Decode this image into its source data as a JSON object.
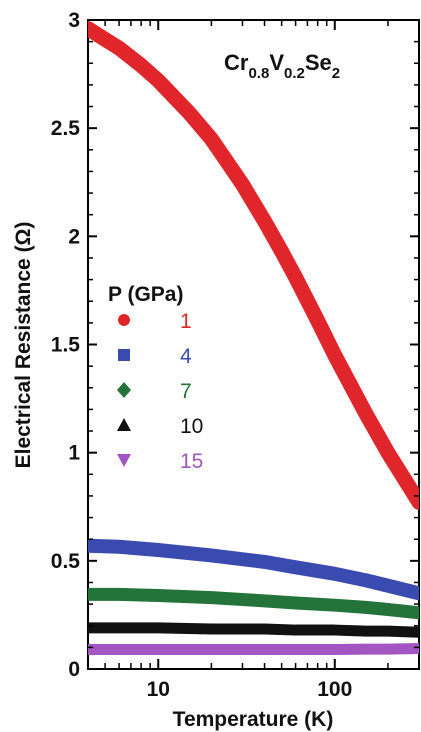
{
  "chart_data": {
    "type": "line",
    "annotation": {
      "parts": [
        {
          "text": "Cr",
          "sub": false
        },
        {
          "text": "0.8",
          "sub": true
        },
        {
          "text": "V",
          "sub": false
        },
        {
          "text": "0.2",
          "sub": true
        },
        {
          "text": "Se",
          "sub": false
        },
        {
          "text": "2",
          "sub": true
        }
      ]
    },
    "xlabel": "Temperature (K)",
    "ylabel": "Electrical Resistance (Ω)",
    "xscale": "log",
    "xlim": [
      4,
      300
    ],
    "ylim": [
      0,
      3
    ],
    "xticks": [
      {
        "value": 10,
        "label": "10"
      },
      {
        "value": 100,
        "label": "100"
      }
    ],
    "yticks": [
      {
        "value": 0,
        "label": "0"
      },
      {
        "value": 0.5,
        "label": "0.5"
      },
      {
        "value": 1,
        "label": "1"
      },
      {
        "value": 1.5,
        "label": "1.5"
      },
      {
        "value": 2,
        "label": "2"
      },
      {
        "value": 2.5,
        "label": "2.5"
      },
      {
        "value": 3,
        "label": "3"
      }
    ],
    "legend_title": "P (GPa)",
    "legend_position": "left-middle",
    "series": [
      {
        "name": "1",
        "color": "#e0262b",
        "marker": "circle",
        "x": [
          4,
          5,
          6,
          8,
          10,
          15,
          20,
          30,
          40,
          50,
          60,
          80,
          100,
          150,
          200,
          300
        ],
        "y": [
          2.96,
          2.91,
          2.87,
          2.79,
          2.72,
          2.57,
          2.45,
          2.24,
          2.07,
          1.93,
          1.81,
          1.61,
          1.45,
          1.18,
          1.0,
          0.77
        ]
      },
      {
        "name": "4",
        "color": "#3a4bb0",
        "marker": "square",
        "x": [
          4,
          6,
          10,
          20,
          40,
          60,
          100,
          150,
          200,
          300
        ],
        "y": [
          0.57,
          0.565,
          0.55,
          0.525,
          0.495,
          0.47,
          0.44,
          0.41,
          0.385,
          0.35
        ]
      },
      {
        "name": "7",
        "color": "#24733a",
        "marker": "diamond",
        "x": [
          4,
          6,
          10,
          20,
          40,
          60,
          100,
          150,
          200,
          300
        ],
        "y": [
          0.345,
          0.345,
          0.34,
          0.33,
          0.315,
          0.305,
          0.295,
          0.285,
          0.275,
          0.26
        ]
      },
      {
        "name": "10",
        "color": "#111111",
        "marker": "triangle-up",
        "x": [
          4,
          6,
          10,
          20,
          40,
          60,
          100,
          150,
          200,
          300
        ],
        "y": [
          0.19,
          0.19,
          0.19,
          0.185,
          0.185,
          0.18,
          0.18,
          0.175,
          0.175,
          0.17
        ]
      },
      {
        "name": "15",
        "color": "#a356c2",
        "marker": "triangle-down",
        "x": [
          4,
          6,
          10,
          20,
          40,
          60,
          100,
          150,
          200,
          300
        ],
        "y": [
          0.09,
          0.09,
          0.09,
          0.09,
          0.09,
          0.09,
          0.09,
          0.092,
          0.092,
          0.095
        ]
      }
    ],
    "grid": false
  }
}
